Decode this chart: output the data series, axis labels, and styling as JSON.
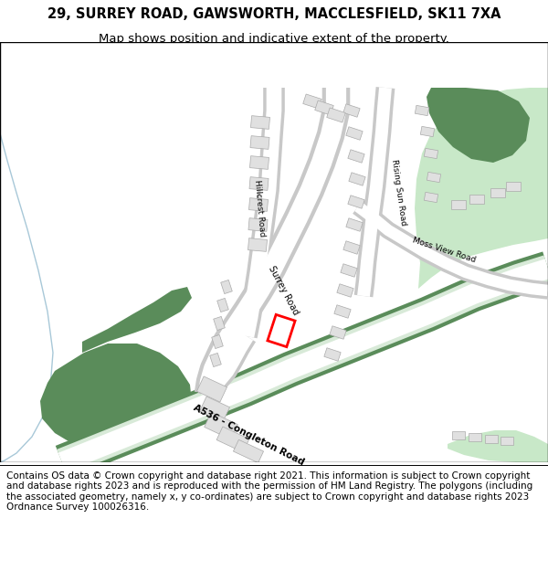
{
  "title": "29, SURREY ROAD, GAWSWORTH, MACCLESFIELD, SK11 7XA",
  "subtitle": "Map shows position and indicative extent of the property.",
  "footer": "Contains OS data © Crown copyright and database right 2021. This information is subject to Crown copyright and database rights 2023 and is reproduced with the permission of HM Land Registry. The polygons (including the associated geometry, namely x, y co-ordinates) are subject to Crown copyright and database rights 2023 Ordnance Survey 100026316.",
  "title_fontsize": 10.5,
  "subtitle_fontsize": 9.5,
  "footer_fontsize": 7.5,
  "map_bg": "#ffffff",
  "green_dark": "#5a8c5a",
  "green_light": "#c8e8c8",
  "building_color": "#e0e0e0",
  "building_outline": "#aaaaaa",
  "road_fill": "#ffffff",
  "road_outline": "#c8c8c8",
  "road_a_fill": "#d8ead8",
  "road_a_outline": "#5a8c5a",
  "red_outline": "#ff0000",
  "water_line": "#a8c8d8"
}
